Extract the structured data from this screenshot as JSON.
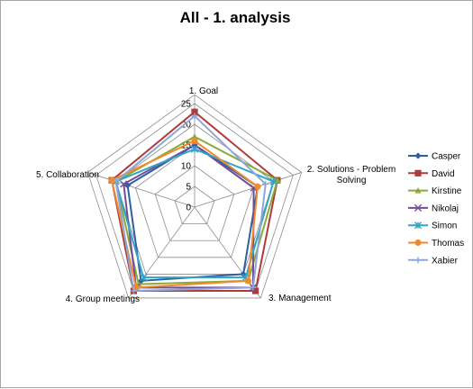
{
  "chart_data": {
    "type": "radar",
    "title": "All - 1. analysis",
    "categories": [
      "1. Goal",
      "2. Solutions - Problem Solving",
      "3. Management",
      "4. Group meetings",
      "5. Collaboration"
    ],
    "category_lines": [
      [
        "1. Goal"
      ],
      [
        "2. Solutions - Problem",
        "Solving"
      ],
      [
        "3. Management"
      ],
      [
        "4. Group meetings"
      ],
      [
        "5. Collaboration"
      ]
    ],
    "r_ticks": [
      "0",
      "5",
      "10",
      "15",
      "20",
      "25"
    ],
    "rlim": [
      0,
      25
    ],
    "series": [
      {
        "name": "Casper",
        "color": "#2e5fa3",
        "marker": "diamond",
        "values": [
          15,
          16,
          20,
          22,
          17
        ]
      },
      {
        "name": "David",
        "color": "#b03a3a",
        "marker": "square",
        "values": [
          23,
          21,
          25,
          25,
          21
        ]
      },
      {
        "name": "Kirstine",
        "color": "#8aaa38",
        "marker": "triangle",
        "values": [
          17,
          21,
          22,
          23,
          20
        ]
      },
      {
        "name": "Nikolaj",
        "color": "#6f4e9a",
        "marker": "x",
        "values": [
          15,
          15,
          24,
          24,
          18
        ]
      },
      {
        "name": "Simon",
        "color": "#33a3c6",
        "marker": "star",
        "values": [
          14,
          20,
          21,
          21,
          20
        ]
      },
      {
        "name": "Thomas",
        "color": "#f08a2c",
        "marker": "circle",
        "values": [
          16,
          16,
          22,
          24,
          21
        ]
      },
      {
        "name": "Xabier",
        "color": "#8fa6d8",
        "marker": "plus",
        "values": [
          22,
          18,
          24,
          25,
          20
        ]
      }
    ],
    "legend_position": "right",
    "grid": true
  }
}
